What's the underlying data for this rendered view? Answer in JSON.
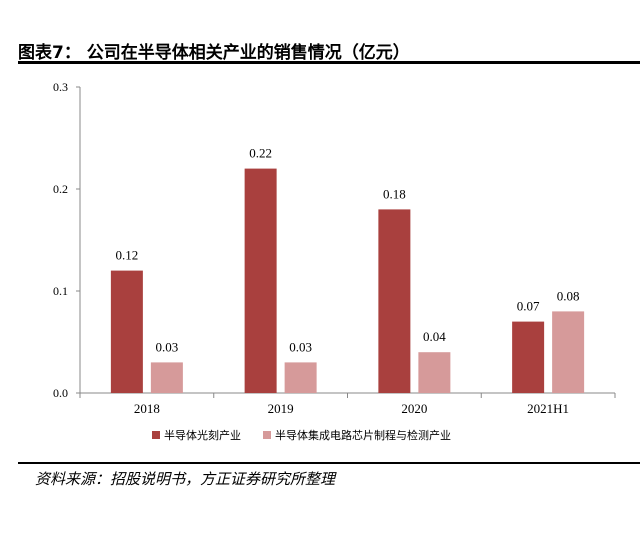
{
  "title": "图表7：  公司在半导体相关产业的销售情况（亿元）",
  "source": "资料来源：招股说明书，方正证券研究所整理",
  "chart_data": {
    "type": "bar",
    "categories": [
      "2018",
      "2019",
      "2020",
      "2021H1"
    ],
    "series": [
      {
        "name": "半导体光刻产业",
        "values": [
          0.12,
          0.22,
          0.18,
          0.07
        ],
        "labels": [
          "0.12",
          "0.22",
          "0.18",
          "0.07"
        ],
        "color": "#A9403E"
      },
      {
        "name": "半导体集成电路芯片制程与检测产业",
        "values": [
          0.03,
          0.03,
          0.04,
          0.08
        ],
        "labels": [
          "0.03",
          "0.03",
          "0.04",
          "0.08"
        ],
        "color": "#D69A9A"
      }
    ],
    "ylim": [
      0,
      0.3
    ],
    "yticks": [
      "0.0",
      "0.1",
      "0.2",
      "0.3"
    ],
    "legend": "bottom",
    "grid": false
  }
}
